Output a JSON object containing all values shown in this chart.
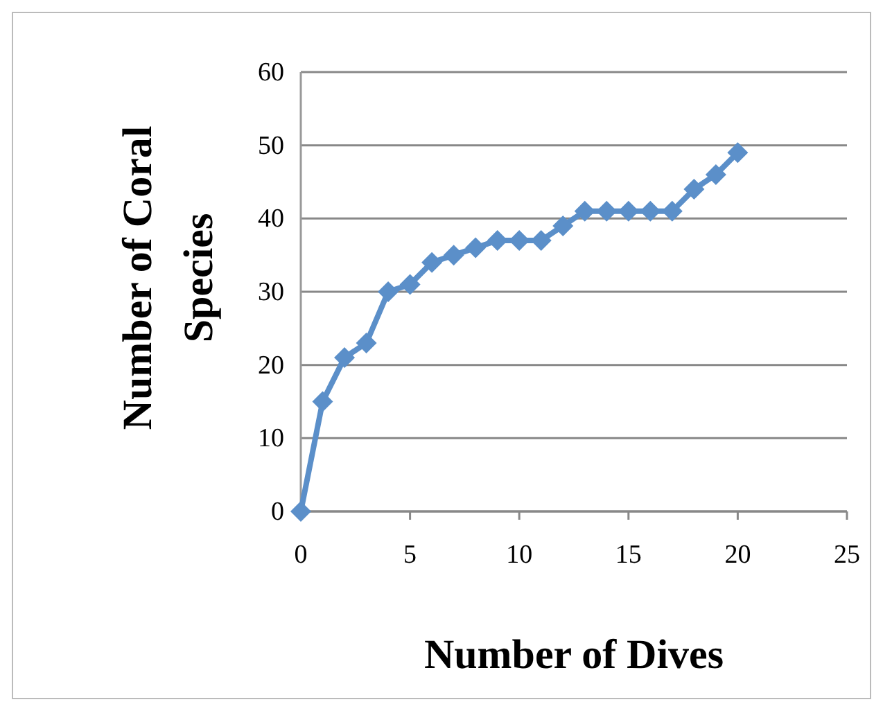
{
  "chart_data": {
    "type": "line",
    "xlabel": "Number of Dives",
    "ylabel": "Number of Coral Species",
    "x": [
      0,
      1,
      2,
      3,
      4,
      5,
      6,
      7,
      8,
      9,
      10,
      11,
      12,
      13,
      14,
      15,
      16,
      17,
      18,
      19,
      20
    ],
    "series": [
      {
        "color": "#5b8fc9",
        "values": [
          0,
          15,
          21,
          23,
          30,
          31,
          34,
          35,
          36,
          37,
          37,
          37,
          39,
          41,
          41,
          41,
          41,
          41,
          44,
          46,
          49
        ]
      }
    ],
    "xlim": [
      0,
      25
    ],
    "xticks": [
      0,
      5,
      10,
      15,
      20,
      25
    ],
    "ylim": [
      0,
      60
    ],
    "yticks": [
      0,
      10,
      20,
      30,
      40,
      50,
      60
    ],
    "grid": "y",
    "marker": "diamond",
    "line_style": "solid"
  }
}
